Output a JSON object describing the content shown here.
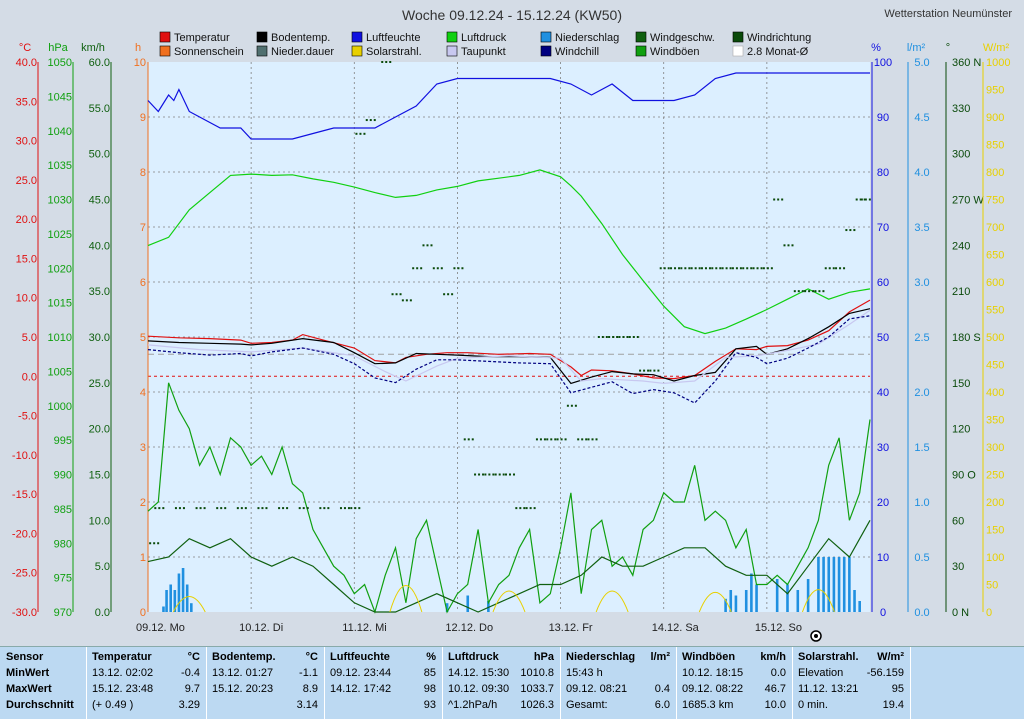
{
  "title": "Woche 09.12.24 - 15.12.24 (KW50)",
  "station": "Wetterstation Neumünster",
  "legend": [
    {
      "label": "Temperatur",
      "color": "#e01010"
    },
    {
      "label": "Bodentemp.",
      "color": "#000000"
    },
    {
      "label": "Luftfeuchte",
      "color": "#1010e0"
    },
    {
      "label": "Luftdruck",
      "color": "#10d010"
    },
    {
      "label": "Niederschlag",
      "color": "#2090e0"
    },
    {
      "label": "Windgeschw.",
      "color": "#106010"
    },
    {
      "label": "Windrichtung",
      "color": "#0a4a0a"
    },
    {
      "label": "Sonnenschein",
      "color": "#f07020"
    },
    {
      "label": "Nieder.dauer",
      "color": "#507070"
    },
    {
      "label": "Solarstrahl.",
      "color": "#e8d000"
    },
    {
      "label": "Taupunkt",
      "color": "#c8c8f0"
    },
    {
      "label": "Windchill",
      "color": "#000080"
    },
    {
      "label": "Windböen",
      "color": "#10a010"
    },
    {
      "label": "2.8 Monat-Ø",
      "color": "#ffffff"
    }
  ],
  "axes_units": {
    "temp": "°C",
    "pressure": "hPa",
    "wind": "km/h",
    "sun": "h",
    "humidity": "%",
    "rain": "l/m²",
    "dir": "°",
    "solar": "W/m²"
  },
  "axes_ticks": {
    "temp": [
      "40.0",
      "35.0",
      "30.0",
      "25.0",
      "20.0",
      "15.0",
      "10.0",
      "5.0",
      "0.0",
      "-5.0",
      "-10.0",
      "-15.0",
      "-20.0",
      "-25.0",
      "-30.0"
    ],
    "pressure": [
      "1050",
      "1045",
      "1040",
      "1035",
      "1030",
      "1025",
      "1020",
      "1015",
      "1010",
      "1005",
      "1000",
      "995",
      "990",
      "985",
      "980",
      "975",
      "970"
    ],
    "wind": [
      "60.0",
      "55.0",
      "50.0",
      "45.0",
      "40.0",
      "35.0",
      "30.0",
      "25.0",
      "20.0",
      "15.0",
      "10.0",
      "5.0",
      "0.0"
    ],
    "sun": [
      "10",
      "9",
      "8",
      "7",
      "6",
      "5",
      "4",
      "3",
      "2",
      "1",
      "0"
    ],
    "humidity": [
      "100",
      "90",
      "80",
      "70",
      "60",
      "50",
      "40",
      "30",
      "20",
      "10",
      "0"
    ],
    "rain": [
      "5.0",
      "4.5",
      "4.0",
      "3.5",
      "3.0",
      "2.5",
      "2.0",
      "1.5",
      "1.0",
      "0.5",
      "0.0"
    ],
    "dir": [
      "360 N",
      "330",
      "300",
      "270 W",
      "240",
      "210",
      "180 S",
      "150",
      "120",
      "90 O",
      "60",
      "30",
      "0 N"
    ],
    "solar": [
      "1000",
      "950",
      "900",
      "850",
      "800",
      "750",
      "700",
      "650",
      "600",
      "550",
      "500",
      "450",
      "400",
      "350",
      "300",
      "250",
      "200",
      "150",
      "100",
      "50",
      "0"
    ]
  },
  "day_labels": [
    "09.12. Mo",
    "10.12. Di",
    "11.12. Mi",
    "12.12. Do",
    "13.12. Fr",
    "14.12. Sa",
    "15.12. So"
  ],
  "colors": {
    "plot_bg": "#dcefff",
    "grid": "#808080",
    "zero_line": "#e01010"
  },
  "chart_data": {
    "type": "line",
    "title": "Woche 09.12.24 - 15.12.24 (KW50)",
    "x_range_days": [
      0,
      7
    ],
    "ylim": {
      "temp": [
        -30,
        40
      ],
      "pressure": [
        970,
        1050
      ],
      "wind": [
        0,
        60
      ],
      "sun": [
        0,
        10
      ],
      "humidity": [
        0,
        100
      ],
      "rain": [
        0,
        5
      ],
      "dir": [
        0,
        360
      ],
      "solar": [
        0,
        1000
      ]
    },
    "series": [
      {
        "name": "Luftfeuchte",
        "axis": "humidity",
        "color": "#1010e0",
        "x": [
          0,
          0.1,
          0.2,
          0.25,
          0.3,
          0.4,
          0.5,
          0.7,
          0.9,
          1,
          1.2,
          1.4,
          1.6,
          1.8,
          2,
          2.2,
          2.4,
          2.6,
          2.8,
          3,
          3.3,
          3.6,
          3.9,
          4.1,
          4.3,
          4.5,
          4.7,
          4.9,
          5.1,
          5.3,
          5.5,
          5.7,
          6,
          6.3,
          6.6,
          6.9,
          7
        ],
        "y": [
          93,
          91,
          94,
          93,
          95,
          91,
          90,
          88,
          88,
          86,
          86,
          86,
          87,
          88,
          88,
          88,
          90,
          92,
          96,
          97,
          97,
          97,
          97,
          96,
          94,
          96,
          93,
          93,
          93,
          94,
          97,
          98,
          98,
          98,
          98,
          98,
          98
        ]
      },
      {
        "name": "Luftdruck",
        "axis": "pressure",
        "color": "#10d010",
        "x": [
          0,
          0.2,
          0.4,
          0.6,
          0.8,
          1,
          1.2,
          1.4,
          1.6,
          1.8,
          2,
          2.2,
          2.4,
          2.6,
          2.8,
          3,
          3.2,
          3.4,
          3.6,
          3.8,
          4,
          4.1,
          4.2,
          4.4,
          4.6,
          4.8,
          5,
          5.2,
          5.4,
          5.6,
          5.8,
          6,
          6.2,
          6.4,
          6.6,
          6.8,
          7
        ],
        "y": [
          1023.3,
          1024.5,
          1028.5,
          1031,
          1033.5,
          1033.7,
          1033.5,
          1033.6,
          1033,
          1032.5,
          1031.8,
          1031,
          1030.3,
          1030.6,
          1031.4,
          1031.9,
          1032.7,
          1033.1,
          1033.5,
          1034.3,
          1033.3,
          1032,
          1030.5,
          1026.5,
          1022,
          1018.2,
          1014.5,
          1011.5,
          1010.5,
          1011.3,
          1012.6,
          1014,
          1015.5,
          1017,
          1015.5,
          1016.5,
          1017
        ]
      },
      {
        "name": "Temperatur",
        "axis": "temp",
        "color": "#e01010",
        "x": [
          0,
          0.3,
          0.6,
          0.9,
          1,
          1.2,
          1.4,
          1.5,
          1.7,
          2,
          2.2,
          2.4,
          2.5,
          2.7,
          2.9,
          3.1,
          3.4,
          3.7,
          3.9,
          4.1,
          4.2,
          4.3,
          4.5,
          4.7,
          4.9,
          5.1,
          5.3,
          5.5,
          5.7,
          5.9,
          6,
          6.2,
          6.4,
          6.6,
          6.8,
          7
        ],
        "y": [
          5.1,
          4.9,
          4.8,
          4.6,
          4.2,
          4.3,
          4.6,
          5.3,
          4.6,
          3.6,
          2,
          1.7,
          2.4,
          2.8,
          3,
          3,
          2.8,
          2.9,
          2.8,
          1.2,
          0.1,
          0.8,
          0.7,
          0.3,
          -0.2,
          -0.3,
          0.1,
          1.9,
          3.5,
          3.4,
          3.8,
          3.9,
          4.6,
          5.8,
          8.2,
          9.7
        ]
      },
      {
        "name": "Bodentemp.",
        "axis": "temp",
        "color": "#000000",
        "x": [
          0,
          0.3,
          0.6,
          0.9,
          1,
          1.2,
          1.5,
          1.8,
          2,
          2.2,
          2.4,
          2.6,
          2.8,
          3,
          3.3,
          3.6,
          3.9,
          4.1,
          4.3,
          4.5,
          4.7,
          4.9,
          5.1,
          5.3,
          5.5,
          5.7,
          5.9,
          6,
          6.2,
          6.4,
          6.6,
          6.8,
          7
        ],
        "y": [
          4.5,
          4.3,
          4.2,
          4.1,
          4,
          4.2,
          4.8,
          4.3,
          3,
          1.6,
          1.7,
          2.9,
          2.8,
          2.7,
          2.5,
          2.5,
          2.4,
          -0.9,
          -0.1,
          0.6,
          0.3,
          0.2,
          -0.6,
          0.1,
          0.5,
          3.5,
          3.8,
          2.8,
          3.5,
          4.8,
          6.3,
          8,
          8.6
        ]
      },
      {
        "name": "Taupunkt",
        "axis": "temp",
        "color": "#c8c8f0",
        "x": [
          0,
          0.5,
          1,
          1.5,
          2,
          2.3,
          2.5,
          2.8,
          3,
          3.5,
          4,
          4.2,
          4.4,
          4.8,
          5,
          5.3,
          5.6,
          5.9,
          6.2,
          6.5,
          6.8,
          7
        ],
        "y": [
          4,
          3.4,
          3.1,
          3.6,
          2.6,
          0.6,
          -0.6,
          1.3,
          2.3,
          2.6,
          2.3,
          -0.6,
          -0.3,
          -0.6,
          -0.9,
          -0.6,
          2.4,
          2.6,
          3.3,
          4.1,
          6.6,
          8.4
        ]
      },
      {
        "name": "Windchill",
        "axis": "temp",
        "color": "#000080",
        "x": [
          0,
          0.3,
          0.6,
          0.9,
          1,
          1.2,
          1.5,
          1.8,
          2,
          2.2,
          2.4,
          2.6,
          2.8,
          3,
          3.3,
          3.6,
          3.9,
          4.1,
          4.3,
          4.5,
          4.7,
          4.9,
          5.1,
          5.3,
          5.5,
          5.7,
          5.9,
          6,
          6.2,
          6.4,
          6.6,
          6.8,
          7
        ],
        "y": [
          3.4,
          3,
          2.7,
          2.9,
          2.6,
          3.1,
          3.6,
          2.8,
          1.6,
          -0.2,
          -0.8,
          0.9,
          2.1,
          2.1,
          1.9,
          1.7,
          1.6,
          -2.1,
          -1.4,
          -0.7,
          -2.2,
          -1.7,
          -2.1,
          -3.4,
          -0.6,
          3,
          2.4,
          1.6,
          2.3,
          3.6,
          5,
          7.3,
          7.7
        ]
      },
      {
        "name": "Windböen",
        "axis": "wind",
        "color": "#10a010",
        "x": [
          0,
          0.1,
          0.2,
          0.3,
          0.4,
          0.5,
          0.6,
          0.7,
          0.8,
          0.9,
          1,
          1.1,
          1.2,
          1.3,
          1.4,
          1.5,
          1.6,
          1.7,
          1.8,
          1.9,
          2,
          2.1,
          2.2,
          2.3,
          2.4,
          2.5,
          2.6,
          2.7,
          2.8,
          2.9,
          3,
          3.1,
          3.2,
          3.3,
          3.4,
          3.5,
          3.6,
          3.7,
          3.8,
          3.9,
          4,
          4.1,
          4.2,
          4.3,
          4.4,
          4.5,
          4.6,
          4.7,
          4.8,
          4.9,
          5,
          5.1,
          5.2,
          5.3,
          5.4,
          5.5,
          5.6,
          5.7,
          5.8,
          5.9,
          6,
          6.1,
          6.2,
          6.3,
          6.4,
          6.5,
          6.6,
          6.7,
          6.8,
          6.9,
          7
        ],
        "y": [
          11,
          12,
          25,
          22,
          20,
          16,
          18,
          15,
          19,
          18,
          16,
          17,
          15,
          18,
          14,
          13,
          9,
          7,
          5,
          4,
          2,
          3,
          0,
          4,
          7,
          1,
          8,
          10,
          5,
          0,
          2,
          3,
          9,
          1,
          3,
          4,
          7,
          9,
          1,
          2,
          7,
          13,
          2,
          9,
          10,
          5,
          6,
          4,
          9,
          10,
          13,
          12,
          12,
          16,
          10,
          11,
          10,
          7,
          9,
          3,
          3,
          4,
          3,
          5,
          7,
          10,
          16,
          19,
          10,
          13,
          21
        ]
      },
      {
        "name": "Windgeschw.",
        "axis": "wind",
        "color": "#106010",
        "x": [
          0,
          0.2,
          0.4,
          0.6,
          0.8,
          1,
          1.2,
          1.4,
          1.6,
          1.8,
          2,
          2.2,
          2.4,
          2.6,
          2.8,
          3,
          3.2,
          3.4,
          3.6,
          3.8,
          4,
          4.2,
          4.4,
          4.6,
          4.8,
          5,
          5.2,
          5.4,
          5.6,
          5.8,
          6,
          6.2,
          6.4,
          6.6,
          6.8,
          7
        ],
        "y": [
          5.5,
          6,
          8,
          7,
          8,
          6,
          5,
          6,
          5,
          3,
          1,
          0,
          0,
          1,
          2,
          1,
          0,
          1,
          2,
          3,
          3,
          4,
          6,
          5,
          5,
          6,
          7,
          7,
          5,
          4,
          4,
          2,
          5,
          8,
          6,
          10
        ]
      }
    ],
    "precip_bars": {
      "axis": "rain",
      "color": "#2090e0",
      "x": [
        0.15,
        0.18,
        0.22,
        0.26,
        0.3,
        0.34,
        0.38,
        0.42,
        2.9,
        3.1,
        3.3,
        5.6,
        5.65,
        5.7,
        5.8,
        5.85,
        5.9,
        6.1,
        6.2,
        6.3,
        6.4,
        6.5,
        6.55,
        6.6,
        6.65,
        6.7,
        6.75,
        6.8,
        6.85,
        6.9
      ],
      "y": [
        0.05,
        0.2,
        0.25,
        0.2,
        0.35,
        0.4,
        0.25,
        0.08,
        0.08,
        0.15,
        0.1,
        0.12,
        0.2,
        0.15,
        0.2,
        0.35,
        0.25,
        0.3,
        0.25,
        0.2,
        0.3,
        0.5,
        0.5,
        0.5,
        0.5,
        0.5,
        0.5,
        0.5,
        0.2,
        0.1
      ]
    },
    "wind_direction_points": {
      "axis": "dir",
      "color": "#0a4a0a",
      "x": [
        0.05,
        0.1,
        0.3,
        0.5,
        0.7,
        0.9,
        1.1,
        1.3,
        1.5,
        1.7,
        1.9,
        2.0,
        2.05,
        2.15,
        2.3,
        2.4,
        2.5,
        2.6,
        2.7,
        2.8,
        2.9,
        3.0,
        3.1,
        3.2,
        3.3,
        3.4,
        3.5,
        3.6,
        3.7,
        3.8,
        3.9,
        4.0,
        4.1,
        4.2,
        4.3,
        4.4,
        4.5,
        4.6,
        4.7,
        4.8,
        4.9,
        5.0,
        5.1,
        5.2,
        5.3,
        5.4,
        5.5,
        5.6,
        5.7,
        5.8,
        5.9,
        6.0,
        6.1,
        6.2,
        6.3,
        6.4,
        6.5,
        6.6,
        6.7,
        6.8,
        6.9,
        6.95
      ],
      "y": [
        45,
        68,
        68,
        68,
        68,
        68,
        68,
        68,
        68,
        68,
        68,
        68,
        313,
        322,
        360,
        208,
        204,
        225,
        240,
        225,
        208,
        225,
        113,
        90,
        90,
        90,
        90,
        68,
        68,
        113,
        113,
        113,
        135,
        113,
        113,
        180,
        180,
        180,
        180,
        158,
        158,
        225,
        225,
        225,
        225,
        225,
        225,
        225,
        225,
        225,
        225,
        225,
        270,
        240,
        210,
        210,
        210,
        225,
        225,
        250,
        270,
        270
      ]
    }
  },
  "table": {
    "columns": [
      {
        "header": "Sensor",
        "unit": "",
        "min_l": "MinWert",
        "max_l": "MaxWert",
        "avg_l": "Durchschnitt",
        "min_v": "",
        "max_v": "",
        "avg_v": ""
      },
      {
        "header": "Temperatur",
        "unit": "°C",
        "min_l": "13.12.  02:02",
        "max_l": "15.12.  23:48",
        "avg_l": "(+ 0.49 )",
        "min_v": "-0.4",
        "max_v": "9.7",
        "avg_v": "3.29"
      },
      {
        "header": "Bodentemp.",
        "unit": "°C",
        "min_l": "13.12.  01:27",
        "max_l": "15.12.  20:23",
        "avg_l": "",
        "min_v": "-1.1",
        "max_v": "8.9",
        "avg_v": "3.14"
      },
      {
        "header": "Luftfeuchte",
        "unit": "%",
        "min_l": "09.12.  23:44",
        "max_l": "14.12.  17:42",
        "avg_l": "",
        "min_v": "85",
        "max_v": "98",
        "avg_v": "93"
      },
      {
        "header": "Luftdruck",
        "unit": "hPa",
        "min_l": "14.12.  15:30",
        "max_l": "10.12.  09:30",
        "avg_l": "^1.2hPa/h",
        "min_v": "1010.8",
        "max_v": "1033.7",
        "avg_v": "1026.3"
      },
      {
        "header": "Niederschlag",
        "unit": "l/m²",
        "min_l": "15:43 h",
        "max_l": "09.12.  08:21",
        "avg_l": "Gesamt:",
        "min_v": "",
        "max_v": "0.4",
        "avg_v": "6.0"
      },
      {
        "header": "Windböen",
        "unit": "km/h",
        "min_l": "10.12.  18:15",
        "max_l": "09.12.  08:22",
        "avg_l": "1685.3 km",
        "min_v": "0.0",
        "max_v": "46.7",
        "avg_v": "10.0"
      },
      {
        "header": "Solarstrahl.",
        "unit": "W/m²",
        "min_l": "Elevation",
        "max_l": "11.12.  13:21",
        "avg_l": "0 min.",
        "min_v": "-56.159",
        "max_v": "95",
        "avg_v": "19.4"
      }
    ]
  }
}
